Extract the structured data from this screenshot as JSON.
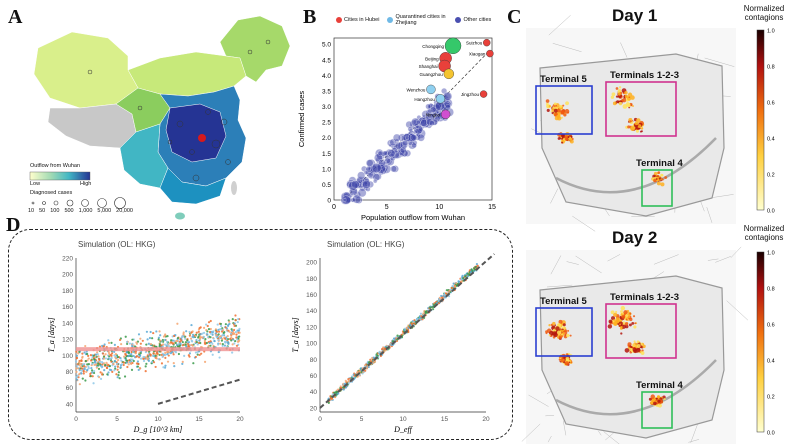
{
  "panels": {
    "a": "A",
    "b": "B",
    "c": "C",
    "d": "D"
  },
  "panelA": {
    "legend_title": "Outflow from Wuhan",
    "scale_low": "Low",
    "scale_high": "High",
    "diagnosed_title": "Diagnosed cases",
    "diagnosed_values": [
      "10",
      "50",
      "100",
      "500",
      "1,000",
      "5,000",
      "20,000"
    ]
  },
  "panelB": {
    "legend": [
      {
        "label": "Cities in Hubei",
        "color": "#e8403a"
      },
      {
        "label": "Quarantined cities in Zhejiang",
        "color": "#6fb9e6"
      },
      {
        "label": "Other cities",
        "color": "#4a4fb0"
      }
    ],
    "chart_data": {
      "type": "scatter",
      "xlabel": "Population outflow from Wuhan",
      "ylabel": "Confirmed cases",
      "x_ticks": [
        "0",
        "5",
        "10",
        "15"
      ],
      "y_ticks": [
        "0",
        "0.5",
        "1.0",
        "1.5",
        "2.0",
        "2.5",
        "3.0",
        "3.5",
        "4.0",
        "4.5",
        "5.0"
      ],
      "xlim": [
        0,
        15
      ],
      "ylim": [
        0,
        5.2
      ],
      "labeled_points": [
        {
          "label": "Chongqing",
          "x": 11.3,
          "y": 4.95
        },
        {
          "label": "Beijing",
          "x": 10.6,
          "y": 4.55
        },
        {
          "label": "Shanghai",
          "x": 10.5,
          "y": 4.3
        },
        {
          "label": "Guangzhou",
          "x": 10.9,
          "y": 4.05
        },
        {
          "label": "Wenzhou",
          "x": 9.2,
          "y": 3.55
        },
        {
          "label": "Hangzhou",
          "x": 10.1,
          "y": 3.25
        },
        {
          "label": "Ningbo",
          "x": 10.6,
          "y": 2.75
        },
        {
          "label": "Suizhou",
          "x": 14.5,
          "y": 5.05
        },
        {
          "label": "Xiaogan",
          "x": 14.8,
          "y": 4.7
        },
        {
          "label": "Jingzhou",
          "x": 14.2,
          "y": 3.4
        }
      ]
    }
  },
  "panelC": {
    "days": [
      {
        "title": "Day 1",
        "terminals": [
          {
            "label": "Terminal 5",
            "color": "#2b3fd0"
          },
          {
            "label": "Terminals 1-2-3",
            "color": "#d0338f"
          },
          {
            "label": "Terminal 4",
            "color": "#2fbf5a"
          }
        ]
      },
      {
        "title": "Day 2",
        "terminals": [
          {
            "label": "Terminal 5",
            "color": "#2b3fd0"
          },
          {
            "label": "Terminals 1-2-3",
            "color": "#d0338f"
          },
          {
            "label": "Terminal 4",
            "color": "#2fbf5a"
          }
        ]
      }
    ],
    "colorbar_title": "Normalized contagions",
    "colorbar_ticks": [
      "1.0",
      "0.8",
      "0.6",
      "0.4",
      "0.2",
      "0.0"
    ]
  },
  "panelD": {
    "left": {
      "title": "Simulation (OL: HKG)",
      "ylabel": "T_a [days]",
      "xlabel": "D_g [10^3 km]",
      "x_ticks": [
        "0",
        "5",
        "10",
        "15",
        "20"
      ],
      "y_ticks": [
        "40",
        "60",
        "80",
        "100",
        "120",
        "140",
        "160",
        "180",
        "200",
        "220"
      ]
    },
    "right": {
      "title": "Simulation (OL: HKG)",
      "ylabel": "T_a [days]",
      "xlabel": "D_eff",
      "x_ticks": [
        "0",
        "5",
        "10",
        "15",
        "20"
      ],
      "y_ticks": [
        "20",
        "40",
        "60",
        "80",
        "100",
        "120",
        "140",
        "160",
        "180",
        "200"
      ]
    }
  }
}
